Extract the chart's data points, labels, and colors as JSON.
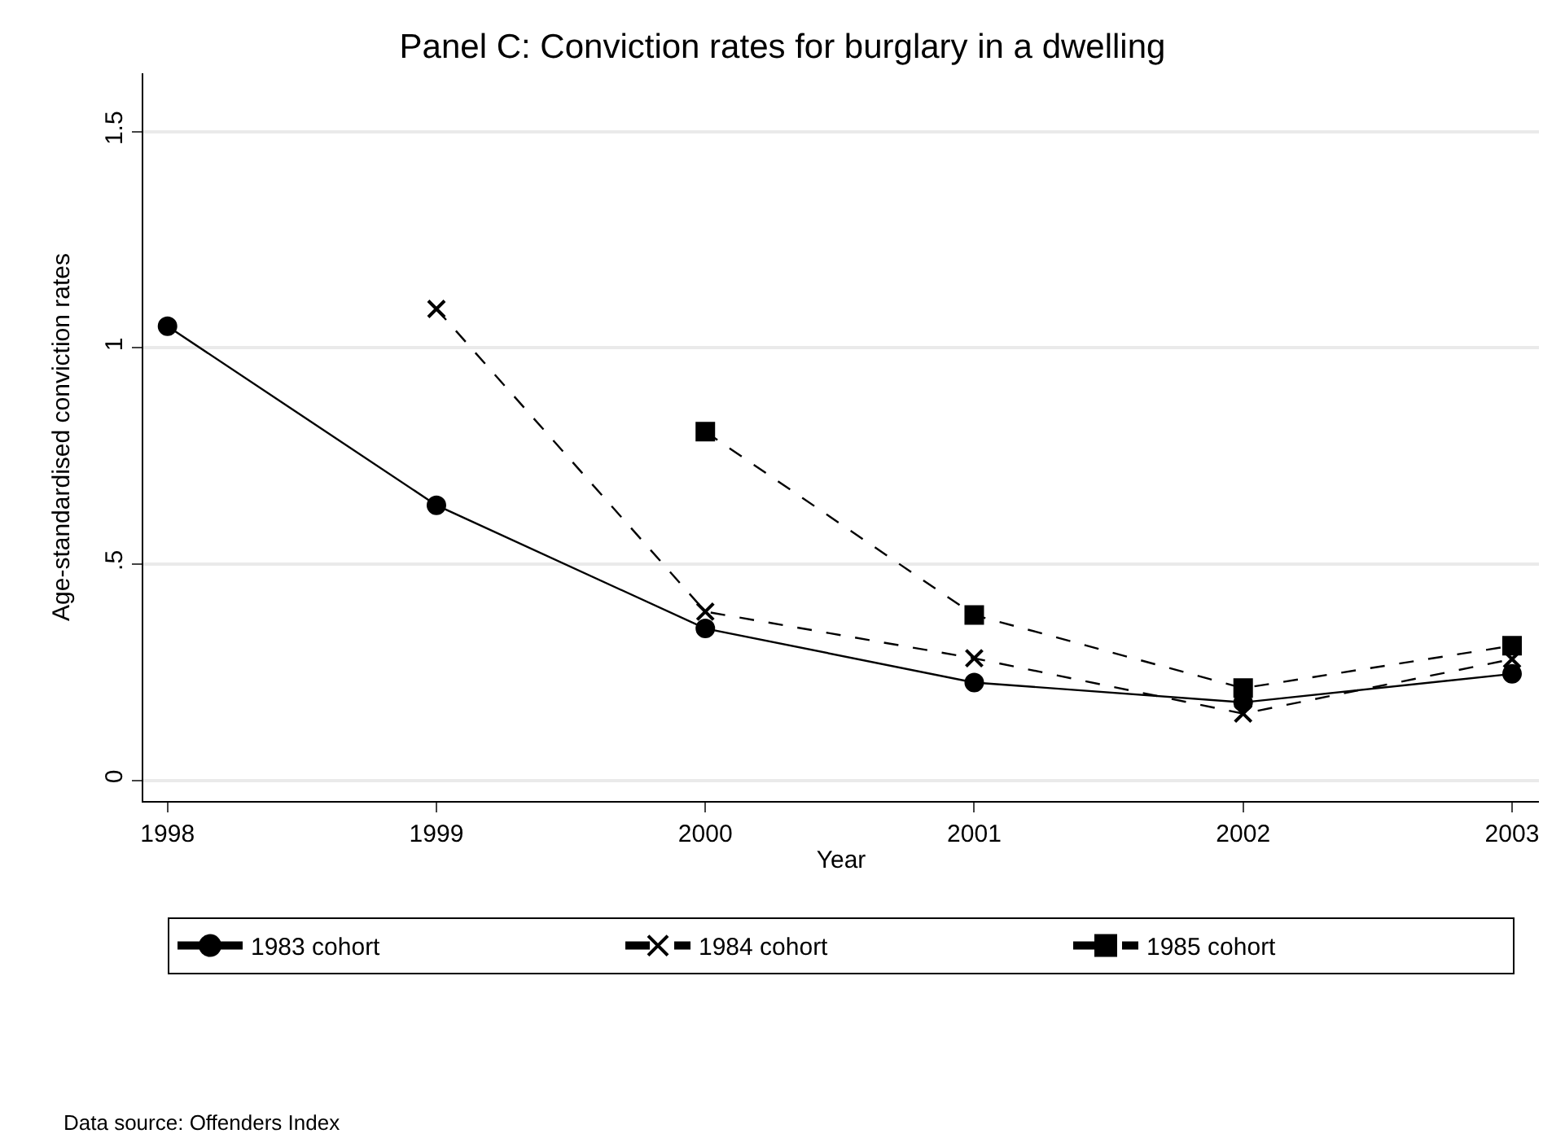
{
  "chart_data": {
    "type": "line",
    "title": "Panel C: Conviction rates for burglary in a dwelling",
    "xlabel": "Year",
    "ylabel": "Age-standardised conviction rates",
    "x": [
      1998,
      1999,
      2000,
      2001,
      2002,
      2003
    ],
    "series": [
      {
        "name": "1983 cohort",
        "color": "#000000",
        "marker": "circle",
        "line_style": "solid",
        "values": [
          1.05,
          0.636,
          0.351,
          0.226,
          0.18,
          0.246
        ]
      },
      {
        "name": "1984 cohort",
        "color": "#000000",
        "marker": "cross",
        "line_style": "dashed",
        "values": [
          null,
          1.09,
          0.39,
          0.282,
          0.154,
          0.28
        ]
      },
      {
        "name": "1985 cohort",
        "color": "#000000",
        "marker": "square",
        "line_style": "dashed",
        "values": [
          null,
          null,
          0.806,
          0.382,
          0.213,
          0.311
        ]
      }
    ],
    "xlim": [
      1997.91,
      2003.1
    ],
    "xticks": [
      1998,
      1999,
      2000,
      2001,
      2002,
      2003
    ],
    "ylim": [
      -0.048,
      1.635
    ],
    "yticks": [
      {
        "value": 0,
        "label": "0"
      },
      {
        "value": 0.5,
        "label": ".5"
      },
      {
        "value": 1,
        "label": "1"
      },
      {
        "value": 1.5,
        "label": "1.5"
      }
    ],
    "grid": "y",
    "legend": "bottom",
    "annotations": [
      "Data source: Offenders Index"
    ]
  }
}
